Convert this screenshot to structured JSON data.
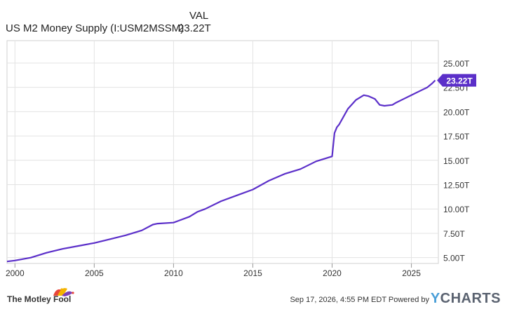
{
  "header": {
    "col_label": "VAL",
    "series_label": "US M2 Money Supply (I:USM2MSSM)",
    "series_value": "23.22T"
  },
  "chart_data": {
    "type": "line",
    "title": "",
    "xlabel": "",
    "ylabel": "",
    "xlim": [
      1999.5,
      2026.7
    ],
    "ylim": [
      4.4,
      27.3
    ],
    "x_ticks": [
      2000,
      2005,
      2010,
      2015,
      2020,
      2025
    ],
    "x_tick_labels": [
      "2000",
      "2005",
      "2010",
      "2015",
      "2020",
      "2025"
    ],
    "y_ticks": [
      5,
      7.5,
      10,
      12.5,
      15,
      17.5,
      20,
      22.5,
      25
    ],
    "y_tick_labels": [
      "5.00T",
      "7.50T",
      "10.00T",
      "12.50T",
      "15.00T",
      "17.50T",
      "20.00T",
      "22.50T",
      "25.00T"
    ],
    "grid": true,
    "series": [
      {
        "name": "US M2 Money Supply (I:USM2MSSM)",
        "color": "#5b2fc9",
        "x": [
          1999.5,
          2000,
          2001,
          2002,
          2003,
          2004,
          2005,
          2006,
          2007,
          2008,
          2008.7,
          2009,
          2010,
          2011,
          2011.5,
          2012,
          2013,
          2014,
          2015,
          2016,
          2017,
          2018,
          2019,
          2020.0,
          2020.15,
          2020.3,
          2020.45,
          2021,
          2021.5,
          2022.0,
          2022.3,
          2022.7,
          2023.0,
          2023.3,
          2023.8,
          2024,
          2024.5,
          2025,
          2025.5,
          2026,
          2026.3,
          2026.5
        ],
        "values": [
          4.6,
          4.7,
          5.0,
          5.5,
          5.9,
          6.2,
          6.5,
          6.9,
          7.3,
          7.8,
          8.4,
          8.5,
          8.6,
          9.2,
          9.7,
          10.0,
          10.8,
          11.4,
          12.0,
          12.9,
          13.6,
          14.1,
          14.9,
          15.4,
          17.8,
          18.4,
          18.7,
          20.3,
          21.2,
          21.7,
          21.6,
          21.3,
          20.7,
          20.6,
          20.7,
          20.9,
          21.3,
          21.7,
          22.1,
          22.5,
          22.9,
          23.22
        ]
      }
    ],
    "annotations": [
      {
        "text": "23.22T",
        "x": 2026.5,
        "y": 23.22,
        "color": "#5b2fc9"
      }
    ]
  },
  "footer": {
    "left_brand": "The Motley Fool",
    "timestamp": "Sep 17, 2026, 4:55 PM EDT",
    "powered_by": "Powered by",
    "ycharts_y": "Y",
    "ycharts_rest": "CHARTS"
  },
  "colors": {
    "line": "#5b2fc9",
    "grid": "#e3e3e3",
    "axis_text": "#333333"
  }
}
